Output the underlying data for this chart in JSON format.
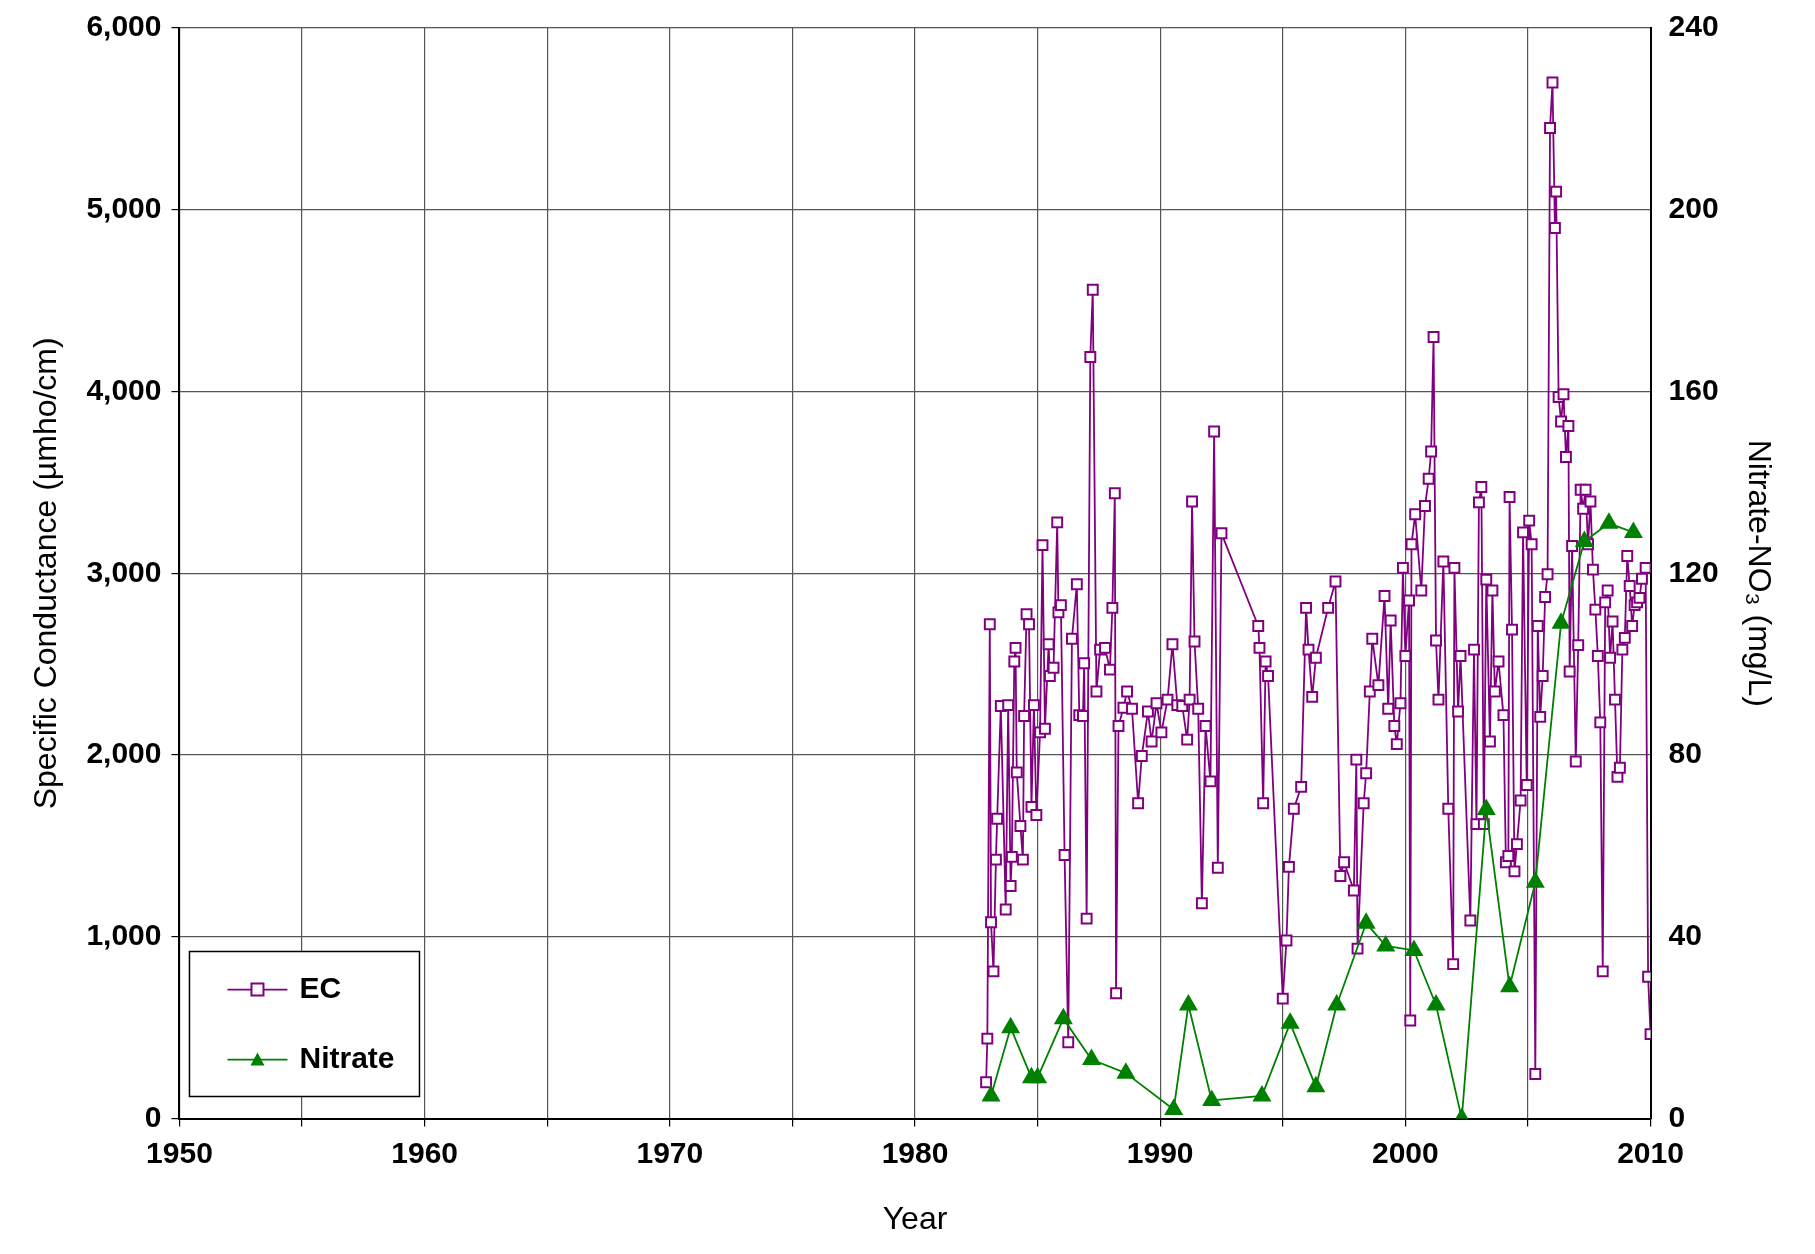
{
  "chart_data": {
    "type": "line",
    "xlabel": "Year",
    "ylabel": "Specific Conductance (µmho/cm)",
    "y2label": "Nitrate-NO₃ (mg/L)",
    "xlim": [
      1950,
      2010
    ],
    "xticks": [
      1950,
      {
        "value": 1955,
        "label": null
      },
      1960,
      {
        "value": 1965,
        "label": null
      },
      1970,
      {
        "value": 1975,
        "label": null
      },
      1980,
      {
        "value": 1985,
        "label": null
      },
      1990,
      {
        "value": 1995,
        "label": null
      },
      2000,
      {
        "value": 2005,
        "label": null
      },
      2010
    ],
    "ylim": [
      0,
      6000
    ],
    "yticks": [
      0,
      {
        "value": 1000,
        "label": "1,000"
      },
      {
        "value": 2000,
        "label": "2,000"
      },
      {
        "value": 3000,
        "label": "3,000"
      },
      {
        "value": 4000,
        "label": "4,000"
      },
      {
        "value": 5000,
        "label": "5,000"
      },
      {
        "value": 6000,
        "label": "6,000"
      }
    ],
    "y2lim": [
      0,
      240
    ],
    "y2ticks": [
      0,
      40,
      80,
      120,
      160,
      200,
      240
    ],
    "grid": true,
    "legend": "bottom left",
    "line_style": "solid",
    "series": [
      {
        "name": "EC",
        "color": "#800080",
        "marker": "square",
        "x": [
          1982.9,
          1982.95,
          1983.05,
          1983.1,
          1983.2,
          1983.3,
          1983.35,
          1983.5,
          1983.7,
          1983.8,
          1983.9,
          1983.95,
          1984.05,
          1984.1,
          1984.15,
          1984.3,
          1984.4,
          1984.45,
          1984.55,
          1984.65,
          1984.75,
          1984.85,
          1984.95,
          1985.1,
          1985.2,
          1985.3,
          1985.45,
          1985.5,
          1985.65,
          1985.8,
          1985.85,
          1985.95,
          1986.1,
          1986.25,
          1986.4,
          1986.6,
          1986.7,
          1986.85,
          1986.9,
          1987.0,
          1987.15,
          1987.25,
          1987.4,
          1987.55,
          1987.75,
          1987.95,
          1988.05,
          1988.15,
          1988.2,
          1988.3,
          1988.5,
          1988.65,
          1988.85,
          1989.1,
          1989.25,
          1989.5,
          1989.65,
          1989.85,
          1990.05,
          1990.3,
          1990.5,
          1990.7,
          1990.9,
          1991.1,
          1991.2,
          1991.3,
          1991.4,
          1991.55,
          1991.7,
          1991.85,
          1992.05,
          1992.2,
          1992.35,
          1992.5,
          1994.0,
          1994.05,
          1994.2,
          1994.3,
          1994.4,
          1995.0,
          1995.15,
          1995.25,
          1995.45,
          1995.75,
          1995.95,
          1996.05,
          1996.2,
          1996.35,
          1996.85,
          1997.15,
          1997.35,
          1997.5,
          1997.9,
          1998.0,
          1998.05,
          1998.3,
          1998.4,
          1998.55,
          1998.65,
          1998.9,
          1999.15,
          1999.3,
          1999.4,
          1999.55,
          1999.65,
          1999.8,
          1999.9,
          2000.0,
          2000.15,
          2000.2,
          2000.25,
          2000.4,
          2000.65,
          2000.8,
          2000.95,
          2001.05,
          2001.15,
          2001.25,
          2001.35,
          2001.55,
          2001.75,
          2001.95,
          2002.0,
          2002.15,
          2002.25,
          2002.65,
          2002.8,
          2002.9,
          2003.0,
          2003.1,
          2003.2,
          2003.3,
          2003.45,
          2003.55,
          2003.65,
          2003.8,
          2004.0,
          2004.1,
          2004.2,
          2004.25,
          2004.35,
          2004.45,
          2004.55,
          2004.7,
          2004.8,
          2004.95,
          2005.05,
          2005.15,
          2005.3,
          2005.4,
          2005.5,
          2005.6,
          2005.7,
          2005.8,
          2005.9,
          2006.0,
          2006.1,
          2006.15,
          2006.25,
          2006.35,
          2006.45,
          2006.55,
          2006.65,
          2006.7,
          2006.8,
          2006.95,
          2007.05,
          2007.15,
          2007.25,
          2007.35,
          2007.45,
          2007.55,
          2007.65,
          2007.75,
          2007.85,
          2007.95,
          2008.05,
          2008.15,
          2008.25,
          2008.35,
          2008.45,
          2008.55,
          2008.65,
          2008.75,
          2008.85,
          2008.95,
          2009.05,
          2009.15,
          2009.25,
          2009.35,
          2009.45,
          2009.55,
          2009.65,
          2009.8,
          2009.9,
          2010.0
        ],
        "values": [
          200,
          440,
          2720,
          1080,
          810,
          1425,
          1650,
          2270,
          1150,
          2275,
          1280,
          1440,
          2515,
          2590,
          1905,
          1610,
          1425,
          2215,
          2775,
          2720,
          1715,
          2275,
          1670,
          2125,
          3155,
          2145,
          2610,
          2435,
          2480,
          3280,
          2785,
          2825,
          1450,
          420,
          2640,
          2940,
          2220,
          2215,
          2505,
          1100,
          4190,
          4560,
          2350,
          2580,
          2590,
          2470,
          2810,
          3440,
          690,
          2160,
          2260,
          2350,
          2255,
          1735,
          1995,
          2240,
          2075,
          2285,
          2125,
          2305,
          2610,
          2275,
          2270,
          2085,
          2305,
          3395,
          2625,
          2255,
          1185,
          2160,
          1855,
          3780,
          1380,
          3220,
          2710,
          2590,
          1735,
          2515,
          2435,
          660,
          980,
          1385,
          1705,
          1825,
          2810,
          2580,
          2320,
          2535,
          2810,
          2955,
          1335,
          1410,
          1255,
          1975,
          935,
          1735,
          1900,
          2350,
          2640,
          2385,
          2875,
          2255,
          2740,
          2160,
          2060,
          2285,
          3030,
          2545,
          2850,
          540,
          3160,
          3325,
          2905,
          3370,
          3520,
          3670,
          4300,
          2630,
          2305,
          3065,
          1705,
          850,
          3030,
          2240,
          2545,
          1090,
          2580,
          1620,
          3390,
          3475,
          1620,
          2965,
          2075,
          2905,
          2350,
          2515,
          2220,
          1410,
          1445,
          3420,
          2690,
          1360,
          1510,
          1750,
          3225,
          1835,
          3290,
          3160,
          245,
          2710,
          2210,
          2435,
          2870,
          2995,
          5450,
          5700,
          4900,
          5100,
          3970,
          3835,
          3985,
          3640,
          3810,
          2460,
          3150,
          1965,
          2605,
          3460,
          3355,
          3460,
          3160,
          3395,
          3020,
          2800,
          2545,
          2180,
          810,
          2840,
          2905,
          2535,
          2735,
          2305,
          1880,
          1930,
          2580,
          2645,
          3095,
          2930,
          2710,
          2825,
          2840,
          2865,
          2970,
          3030,
          780,
          465
        ]
      },
      {
        "name": "Nitrate",
        "color": "#008000",
        "marker": "triangle",
        "axis": "y2",
        "x": [
          1983.1,
          1983.9,
          1984.75,
          1985.0,
          1986.05,
          1987.2,
          1988.6,
          1990.55,
          1991.15,
          1992.1,
          1994.15,
          1995.3,
          1996.35,
          1997.2,
          1998.4,
          1999.2,
          2000.35,
          2001.25,
          2002.3,
          2003.3,
          2004.25,
          2005.3,
          2006.35,
          2007.3,
          2008.3,
          2009.3
        ],
        "values": [
          5,
          20,
          9,
          9,
          22,
          13,
          10,
          2,
          25,
          4,
          5,
          21,
          7,
          25,
          43,
          38,
          37,
          25,
          0,
          68,
          29,
          52,
          109,
          127,
          131,
          129
        ]
      }
    ]
  }
}
